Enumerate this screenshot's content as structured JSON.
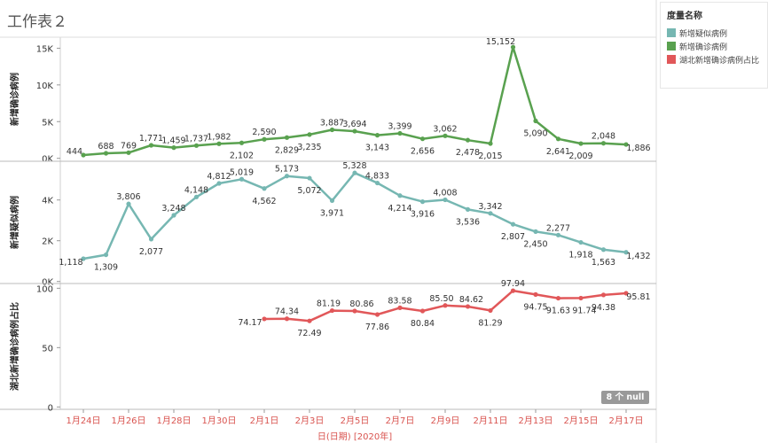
{
  "page": {
    "title": "工作表２"
  },
  "legend": {
    "title": "度量名称",
    "items": [
      {
        "label": "新增疑似病例",
        "color": "#76b7b2"
      },
      {
        "label": "新增确诊病例",
        "color": "#59a14f"
      },
      {
        "label": "湖北新增确诊病例占比",
        "color": "#e15759"
      }
    ]
  },
  "null_badge": "8 个 null",
  "chart_data": {
    "type": "line",
    "xlabel": "日(日期) [2020年]",
    "x_ticks": [
      "1月24日",
      "1月26日",
      "1月28日",
      "1月30日",
      "2月1日",
      "2月3日",
      "2月5日",
      "2月7日",
      "2月9日",
      "2月11日",
      "2月13日",
      "2月15日",
      "2月17日"
    ],
    "x": [
      "1月24日",
      "1月25日",
      "1月26日",
      "1月27日",
      "1月28日",
      "1月29日",
      "1月30日",
      "1月31日",
      "2月1日",
      "2月2日",
      "2月3日",
      "2月4日",
      "2月5日",
      "2月6日",
      "2月7日",
      "2月8日",
      "2月9日",
      "2月10日",
      "2月11日",
      "2月12日",
      "2月13日",
      "2月14日",
      "2月15日",
      "2月16日",
      "2月17日"
    ],
    "panels": [
      {
        "name": "新增确诊病例",
        "ylabel": "新增确诊病例",
        "color": "#59a14f",
        "yticks": [
          0,
          5000,
          10000,
          15000
        ],
        "ytick_labels": [
          "0K",
          "5K",
          "10K",
          "15K"
        ],
        "ylim": [
          -400,
          16500
        ],
        "values": [
          444,
          688,
          769,
          1771,
          1459,
          1737,
          1982,
          2102,
          2590,
          2829,
          3235,
          3887,
          3694,
          3143,
          3399,
          2656,
          3062,
          2478,
          2015,
          15152,
          5090,
          2641,
          2009,
          2048,
          1886
        ],
        "labels": [
          "444",
          "688",
          "769",
          "1,771",
          "1,459",
          "1,737",
          "1,982",
          "2,102",
          "2,590",
          "2,829",
          "3,235",
          "3,887",
          "3,694",
          "3,143",
          "3,399",
          "2,656",
          "3,062",
          "2,478",
          "2,015",
          "15,152",
          "5,090",
          "2,641",
          "2,009",
          "2,048",
          "1,886"
        ]
      },
      {
        "name": "新增疑似病例",
        "ylabel": "新增疑似病例",
        "color": "#76b7b2",
        "yticks": [
          0,
          2000,
          4000
        ],
        "ytick_labels": [
          "0K",
          "2K",
          "4K"
        ],
        "ylim": [
          -100,
          5900
        ],
        "values": [
          1118,
          1309,
          3806,
          2077,
          3248,
          4148,
          4812,
          5019,
          4562,
          5173,
          5072,
          3971,
          5328,
          4833,
          4214,
          3916,
          4008,
          3536,
          3342,
          2807,
          2450,
          2277,
          1918,
          1563,
          1432
        ],
        "labels": [
          "1,118",
          "1,309",
          "3,806",
          "2,077",
          "3,248",
          "4,148",
          "4,812",
          "5,019",
          "4,562",
          "5,173",
          "5,072",
          "3,971",
          "5,328",
          "4,833",
          "4,214",
          "3,916",
          "4,008",
          "3,536",
          "3,342",
          "2,807",
          "2,450",
          "2,277",
          "1,918",
          "1,563",
          "1,432"
        ]
      },
      {
        "name": "湖北新增确诊病例占比",
        "ylabel": "湖北新增确诊病例占比",
        "color": "#e15759",
        "yticks": [
          0,
          50,
          100
        ],
        "ytick_labels": [
          "0",
          "50",
          "100"
        ],
        "ylim": [
          -2,
          104
        ],
        "values": [
          null,
          null,
          null,
          null,
          null,
          null,
          null,
          null,
          74.17,
          74.34,
          72.49,
          81.19,
          80.86,
          77.86,
          83.58,
          80.84,
          85.5,
          84.62,
          81.29,
          97.94,
          94.75,
          91.63,
          91.74,
          94.38,
          95.81
        ],
        "labels": [
          "",
          "",
          "",
          "",
          "",
          "",
          "",
          "",
          "74.17",
          "74.34",
          "72.49",
          "81.19",
          "80.86",
          "77.86",
          "83.58",
          "80.84",
          "85.50",
          "84.62",
          "81.29",
          "97.94",
          "94.75",
          "91.63",
          "91.74",
          "94.38",
          "95.81"
        ]
      }
    ]
  }
}
